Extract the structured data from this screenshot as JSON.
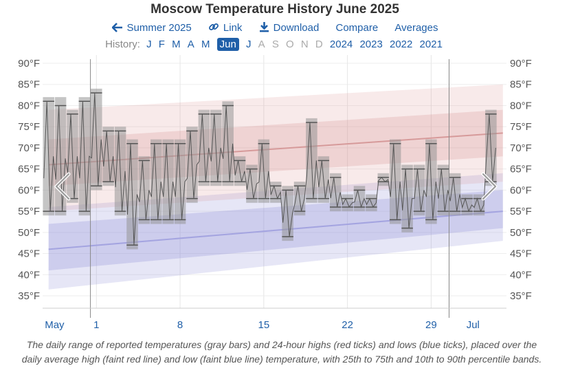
{
  "title": "Moscow Temperature History June 2025",
  "links": [
    {
      "icon": "arrow-left-icon",
      "label": "Summer 2025"
    },
    {
      "icon": "link-icon",
      "label": "Link"
    },
    {
      "icon": "download-icon",
      "label": "Download"
    },
    {
      "icon": "",
      "label": "Compare"
    },
    {
      "icon": "",
      "label": "Averages"
    }
  ],
  "history": {
    "label": "History:",
    "months": [
      {
        "label": "J",
        "state": "link"
      },
      {
        "label": "F",
        "state": "link"
      },
      {
        "label": "M",
        "state": "link"
      },
      {
        "label": "A",
        "state": "link"
      },
      {
        "label": "M",
        "state": "link"
      },
      {
        "label": "Jun",
        "state": "selected"
      },
      {
        "label": "J",
        "state": "link"
      },
      {
        "label": "A",
        "state": "disabled"
      },
      {
        "label": "S",
        "state": "disabled"
      },
      {
        "label": "O",
        "state": "disabled"
      },
      {
        "label": "N",
        "state": "disabled"
      },
      {
        "label": "D",
        "state": "disabled"
      }
    ],
    "years": [
      "2024",
      "2023",
      "2022",
      "2021"
    ]
  },
  "caption": "The daily range of reported temperatures (gray bars) and 24-hour highs (red ticks) and lows (blue ticks), placed over the daily average high (faint red line) and low (faint blue line) temperature, with 25th to 75th and 10th to 90th percentile bands.",
  "colors": {
    "accent": "#1f5fa8",
    "high": "#d48a8a",
    "low": "#8c8cd6",
    "bar": "#a8a8a8"
  },
  "chart_data": {
    "type": "bar",
    "ylim": [
      31,
      90
    ],
    "xlim": [
      -3.5,
      35.3
    ],
    "y_ticks": [
      35,
      40,
      45,
      50,
      55,
      60,
      65,
      70,
      75,
      80,
      85,
      90
    ],
    "y_unit": "°F",
    "x_ticks": [
      {
        "label": "May",
        "day": -2.5
      },
      {
        "label": "1",
        "day": 1
      },
      {
        "label": "8",
        "day": 8
      },
      {
        "label": "15",
        "day": 15
      },
      {
        "label": "22",
        "day": 22
      },
      {
        "label": "29",
        "day": 29
      },
      {
        "label": "Jul",
        "day": 32.5
      }
    ],
    "month_boundaries": [
      0.5,
      30.5
    ],
    "nav_arrows": [
      "chevron-left-icon",
      "chevron-right-icon"
    ],
    "normals": {
      "x": [
        -3,
        35
      ],
      "avg_high": [
        66,
        73.5
      ],
      "p25_high": [
        61,
        68
      ],
      "p75_high": [
        72,
        79
      ],
      "p10_high": [
        55,
        62
      ],
      "p90_high": [
        79,
        85
      ],
      "avg_low": [
        46,
        55
      ],
      "p25_low": [
        41,
        51
      ],
      "p75_low": [
        52,
        60
      ],
      "p10_low": [
        36.5,
        48
      ],
      "p90_low": [
        56,
        64
      ]
    },
    "series": [
      {
        "name": "daily_low",
        "values": [
          54,
          54,
          57,
          54,
          60,
          61,
          54,
          46,
          52,
          52,
          52,
          52,
          57,
          61,
          61,
          61,
          61,
          57,
          57,
          57,
          48,
          54,
          57,
          57,
          55,
          55,
          55,
          55,
          61,
          52,
          50,
          54,
          52,
          54,
          54,
          54,
          54,
          61
        ]
      },
      {
        "name": "daily_high",
        "values": [
          82,
          82,
          79,
          82,
          84,
          75,
          75,
          72,
          68,
          72,
          72,
          72,
          75,
          79,
          79,
          81,
          68,
          66,
          72,
          62,
          61,
          62,
          77,
          68,
          64,
          59,
          61,
          59,
          64,
          72,
          66,
          66,
          72,
          66,
          64,
          59,
          59,
          79
        ]
      }
    ],
    "high_ticks": [
      81,
      80,
      78,
      81,
      83,
      74,
      74,
      71,
      67,
      71,
      71,
      71,
      74,
      78,
      78,
      80,
      67,
      65,
      71,
      61,
      60,
      61,
      76,
      67,
      63,
      58,
      60,
      58,
      63,
      71,
      65,
      65,
      71,
      65,
      63,
      58,
      58,
      78
    ],
    "low_ticks": [
      55,
      55,
      58,
      55,
      61,
      62,
      55,
      47,
      53,
      53,
      53,
      53,
      58,
      62,
      62,
      62,
      62,
      58,
      58,
      58,
      49,
      55,
      58,
      58,
      56,
      56,
      56,
      56,
      62,
      53,
      51,
      55,
      53,
      55,
      55,
      55,
      55,
      62
    ],
    "bar_days": [
      -3,
      -2,
      -1,
      0,
      1,
      2,
      3,
      4,
      5,
      6,
      7,
      8,
      9,
      10,
      11,
      12,
      13,
      14,
      15,
      16,
      17,
      18,
      19,
      20,
      21,
      22,
      23,
      24,
      25,
      26,
      27,
      28,
      29,
      30,
      31,
      32,
      33,
      34
    ]
  }
}
